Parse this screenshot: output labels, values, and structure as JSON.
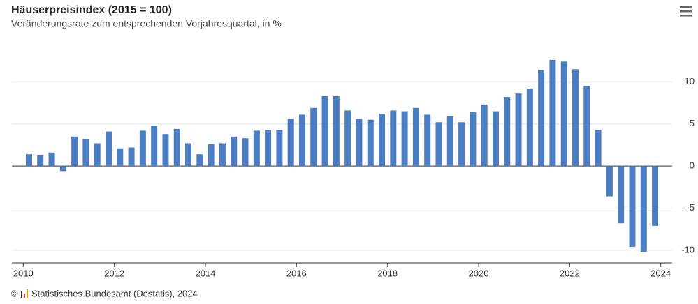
{
  "chart_data": {
    "type": "bar",
    "title": "Häuserpreisindex (2015 = 100)",
    "subtitle": "Veränderungsrate zum entsprechenden Vorjahresquartal, in %",
    "copyright": "©",
    "credit": "Statistisches Bundesamt (Destatis), 2024",
    "color": "#4a7dc2",
    "grid": true,
    "x": [
      2010,
      2010.25,
      2010.5,
      2010.75,
      2011,
      2011.25,
      2011.5,
      2011.75,
      2012,
      2012.25,
      2012.5,
      2012.75,
      2013,
      2013.25,
      2013.5,
      2013.75,
      2014,
      2014.25,
      2014.5,
      2014.75,
      2015,
      2015.25,
      2015.5,
      2015.75,
      2016,
      2016.25,
      2016.5,
      2016.75,
      2017,
      2017.25,
      2017.5,
      2017.75,
      2018,
      2018.25,
      2018.5,
      2018.75,
      2019,
      2019.25,
      2019.5,
      2019.75,
      2020,
      2020.25,
      2020.5,
      2020.75,
      2021,
      2021.25,
      2021.5,
      2021.75,
      2022,
      2022.25,
      2022.5,
      2022.75,
      2023,
      2023.25,
      2023.5,
      2023.75
    ],
    "values": [
      1.4,
      1.3,
      1.6,
      -0.6,
      3.5,
      3.2,
      2.7,
      4.1,
      2.1,
      2.2,
      4.2,
      4.8,
      3.8,
      4.4,
      2.7,
      1.4,
      2.6,
      2.7,
      3.5,
      3.3,
      4.2,
      4.3,
      4.3,
      5.6,
      6.1,
      6.9,
      8.3,
      8.3,
      6.6,
      5.6,
      5.5,
      6.2,
      6.6,
      6.5,
      6.9,
      6.1,
      5.2,
      5.9,
      5.2,
      6.4,
      7.3,
      6.5,
      8.2,
      8.6,
      9.2,
      11.4,
      12.6,
      12.4,
      11.5,
      9.5,
      4.3,
      -3.6,
      -6.8,
      -9.6,
      -10.2,
      -7.1
    ],
    "xlim": [
      2009.75,
      2024.25
    ],
    "xticks": [
      2010,
      2012,
      2014,
      2016,
      2018,
      2020,
      2022,
      2024
    ],
    "ylim": [
      -11.5,
      14
    ],
    "yticks": [
      -10,
      -5,
      0,
      5,
      10
    ]
  }
}
